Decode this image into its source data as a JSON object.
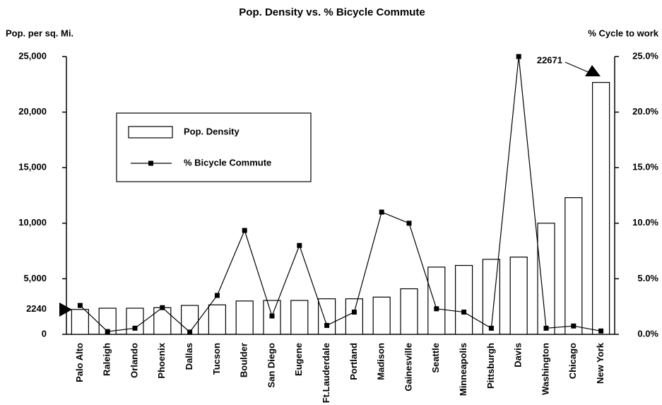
{
  "chart_data": {
    "type": "bar",
    "title": "Pop. Density vs. % Bicycle Commute",
    "y_label": "Pop. per sq. Mi.",
    "y2_label": "% Cycle to work",
    "categories": [
      "Palo Alto",
      "Raleigh",
      "Orlando",
      "Phoenix",
      "Dallas",
      "Tucson",
      "Boulder",
      "San Diego",
      "Eugene",
      "Ft.Lauderdale",
      "Portland",
      "Madison",
      "Gainesville",
      "Seattle",
      "Minneapolis",
      "Pittsburgh",
      "Davis",
      "Washington",
      "Chicago",
      "New York"
    ],
    "series": [
      {
        "name": "Pop. Density",
        "type": "bar",
        "color": "#ffffff",
        "values": [
          2240,
          2350,
          2350,
          2400,
          2600,
          2650,
          3000,
          3050,
          3050,
          3200,
          3200,
          3350,
          4100,
          6050,
          6200,
          6750,
          6950,
          10000,
          12300,
          22671
        ]
      },
      {
        "name": "% Bicycle Commute",
        "type": "line",
        "axis": "y2",
        "color": "#000000",
        "values": [
          2.6,
          0.25,
          0.55,
          2.4,
          0.2,
          3.5,
          9.35,
          1.65,
          8.0,
          0.8,
          2.0,
          11.0,
          10.0,
          2.3,
          2.0,
          0.55,
          25.0,
          0.55,
          0.75,
          0.3
        ]
      }
    ],
    "ylim": [
      0,
      25000
    ],
    "yticks": [
      0,
      2240,
      {
        "value": 5000,
        "label": "5,000"
      },
      {
        "value": 10000,
        "label": "10,000"
      },
      {
        "value": 15000,
        "label": "15,000"
      },
      {
        "value": 20000,
        "label": "20,000"
      },
      {
        "value": 25000,
        "label": "25,000"
      }
    ],
    "y2lim": [
      0,
      25
    ],
    "y2ticks": [
      {
        "value": 0,
        "label": "0.0%"
      },
      {
        "value": 5,
        "label": "5.0%"
      },
      {
        "value": 10,
        "label": "10.0%"
      },
      {
        "value": 15,
        "label": "15.0%"
      },
      {
        "value": 20,
        "label": "20.0%"
      },
      {
        "value": 25,
        "label": "25.0%"
      }
    ],
    "legend": "upper left",
    "grid": false
  }
}
